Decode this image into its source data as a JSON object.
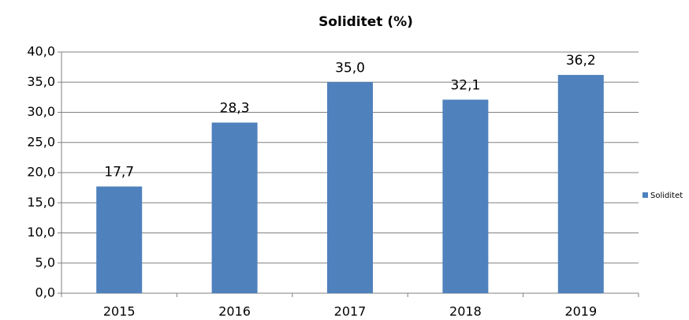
{
  "chart_data": {
    "type": "bar",
    "title": "Soliditet (%)",
    "categories": [
      "2015",
      "2016",
      "2017",
      "2018",
      "2019"
    ],
    "series": [
      {
        "name": "Soliditet",
        "color": "#4f81bd",
        "values": [
          17.7,
          28.3,
          35.0,
          32.1,
          36.2
        ],
        "value_labels": [
          "17,7",
          "28,3",
          "35,0",
          "32,1",
          "36,2"
        ]
      }
    ],
    "ylim": [
      0,
      40
    ],
    "yticks": [
      {
        "value": 0,
        "label": "0,0"
      },
      {
        "value": 5,
        "label": "5,0"
      },
      {
        "value": 10,
        "label": "10,0"
      },
      {
        "value": 15,
        "label": "15,0"
      },
      {
        "value": 20,
        "label": "20,0"
      },
      {
        "value": 25,
        "label": "25,0"
      },
      {
        "value": 30,
        "label": "30,0"
      },
      {
        "value": 35,
        "label": "35,0"
      },
      {
        "value": 40,
        "label": "40,0"
      }
    ],
    "grid": true,
    "legend": "right"
  }
}
